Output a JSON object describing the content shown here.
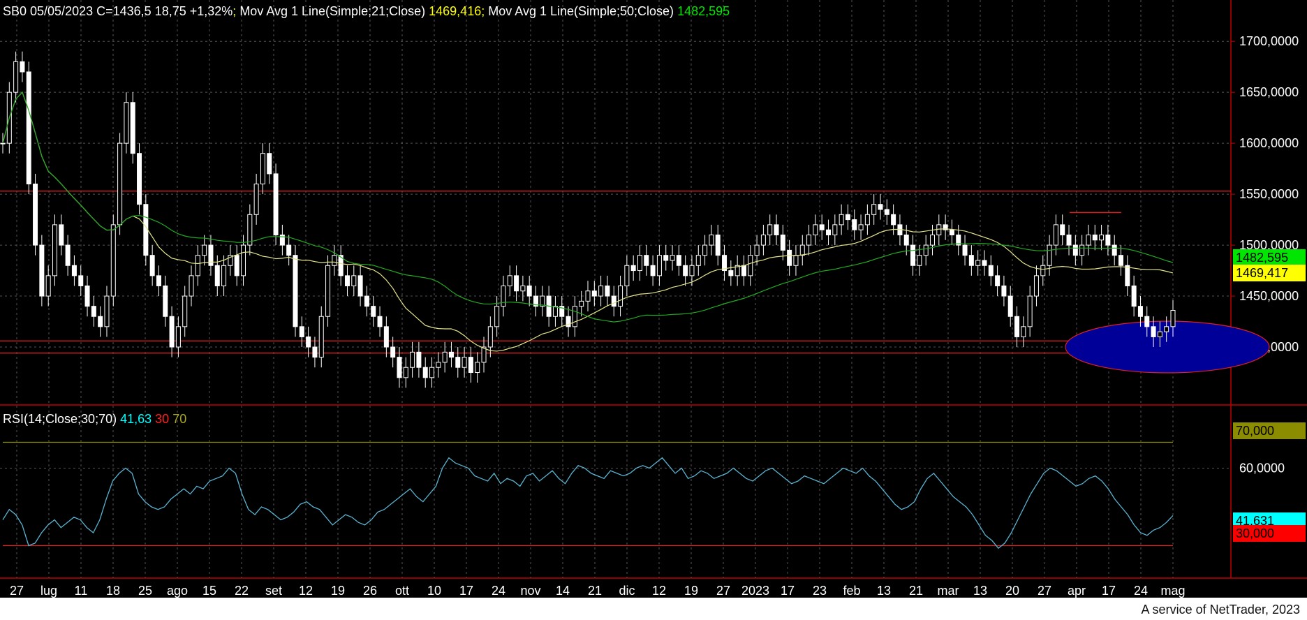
{
  "header": {
    "symbol_line": "SB0 05/05/2023 C=1436,5 18,75 +1,32%",
    "sep1": ";",
    "ma21_label": "Mov Avg 1 Line(Simple;21;Close)",
    "ma21_value": "1469,416",
    "sep2": ";",
    "ma50_label": "Mov Avg 1 Line(Simple;50;Close)",
    "ma50_value": "1482,595"
  },
  "rsi_header": {
    "label": "RSI(14;Close;30;70)",
    "value": "41,63",
    "low": "30",
    "high": "70"
  },
  "tags": {
    "ma50": "1482,595",
    "ma21": "1469,417",
    "rsi70": "70,000",
    "rsi_current": "41,631",
    "rsi30": "30,000"
  },
  "credit": "A service of NetTrader, 2023",
  "colors": {
    "background": "#000000",
    "candle": "#ffffff",
    "ma21": "#e6e68c",
    "ma50": "#22aa22",
    "rsi": "#5ab4d2",
    "level": "#e02020",
    "ellipse_fill": "#000099"
  },
  "chart_data": [
    {
      "type": "candlestick",
      "symbol": "SB0",
      "ylim": [
        1350,
        1720
      ],
      "y_ticks": [
        "1700,0000",
        "1650,0000",
        "1600,0000",
        "1550,0000",
        "1500,0000",
        "1450,0000",
        "1400,0000"
      ],
      "x_tick_labels": [
        "27",
        "lug",
        "11",
        "18",
        "25",
        "ago",
        "15",
        "22",
        "set",
        "12",
        "19",
        "26",
        "ott",
        "10",
        "17",
        "24",
        "nov",
        "14",
        "21",
        "dic",
        "12",
        "19",
        "27",
        "2023",
        "17",
        "23",
        "feb",
        "13",
        "21",
        "mar",
        "13",
        "20",
        "27",
        "apr",
        "17",
        "24",
        "mag"
      ],
      "horizontal_levels": [
        1553,
        1406,
        1394
      ],
      "resistance_segment": {
        "from": "apr",
        "to": "17",
        "value": 1532
      },
      "highlight_ellipse": {
        "center_date": "mag",
        "center_value": 1400
      },
      "close_series": [
        1600,
        1650,
        1680,
        1670,
        1560,
        1500,
        1450,
        1470,
        1520,
        1500,
        1480,
        1470,
        1460,
        1440,
        1430,
        1420,
        1450,
        1520,
        1600,
        1640,
        1590,
        1540,
        1490,
        1470,
        1460,
        1430,
        1400,
        1420,
        1450,
        1470,
        1490,
        1500,
        1480,
        1460,
        1480,
        1490,
        1470,
        1500,
        1530,
        1560,
        1590,
        1570,
        1510,
        1500,
        1490,
        1420,
        1410,
        1400,
        1390,
        1430,
        1480,
        1490,
        1470,
        1460,
        1470,
        1450,
        1440,
        1430,
        1420,
        1400,
        1390,
        1370,
        1380,
        1395,
        1380,
        1370,
        1380,
        1385,
        1395,
        1390,
        1380,
        1390,
        1375,
        1385,
        1400,
        1420,
        1440,
        1460,
        1470,
        1455,
        1460,
        1450,
        1440,
        1450,
        1430,
        1440,
        1430,
        1420,
        1440,
        1445,
        1455,
        1450,
        1460,
        1450,
        1440,
        1460,
        1480,
        1475,
        1490,
        1480,
        1470,
        1490,
        1485,
        1490,
        1480,
        1470,
        1480,
        1490,
        1500,
        1510,
        1490,
        1475,
        1470,
        1480,
        1470,
        1490,
        1500,
        1510,
        1520,
        1510,
        1495,
        1480,
        1490,
        1500,
        1510,
        1520,
        1515,
        1510,
        1520,
        1530,
        1525,
        1515,
        1520,
        1530,
        1540,
        1535,
        1530,
        1520,
        1510,
        1500,
        1480,
        1490,
        1500,
        1510,
        1520,
        1515,
        1510,
        1500,
        1490,
        1480,
        1485,
        1480,
        1470,
        1460,
        1450,
        1430,
        1410,
        1420,
        1450,
        1470,
        1480,
        1500,
        1520,
        1510,
        1500,
        1490,
        1500,
        1510,
        1505,
        1510,
        1500,
        1490,
        1480,
        1460,
        1440,
        1430,
        1420,
        1410,
        1415,
        1420,
        1436
      ],
      "ma21_last": 1469.416,
      "ma50_last": 1482.595
    },
    {
      "type": "line",
      "series_name": "RSI(14;Close;30;70)",
      "ylim": [
        25,
        75
      ],
      "y_ticks": [
        "70,000",
        "60,0000",
        "30,000"
      ],
      "levels": [
        70,
        30
      ],
      "values": [
        40,
        44,
        42,
        38,
        30,
        31,
        35,
        38,
        40,
        37,
        39,
        41,
        40,
        37,
        35,
        40,
        48,
        55,
        58,
        60,
        58,
        50,
        47,
        45,
        44,
        45,
        48,
        50,
        52,
        50,
        53,
        52,
        55,
        56,
        57,
        60,
        58,
        50,
        44,
        42,
        45,
        44,
        42,
        40,
        41,
        43,
        46,
        47,
        45,
        44,
        41,
        38,
        40,
        42,
        41,
        39,
        38,
        40,
        43,
        44,
        46,
        48,
        50,
        52,
        49,
        47,
        50,
        53,
        60,
        64,
        62,
        61,
        60,
        57,
        56,
        55,
        58,
        54,
        56,
        55,
        53,
        57,
        58,
        55,
        57,
        59,
        56,
        54,
        58,
        61,
        60,
        58,
        57,
        56,
        59,
        58,
        57,
        58,
        60,
        61,
        60,
        62,
        64,
        61,
        58,
        60,
        56,
        57,
        59,
        58,
        56,
        57,
        58,
        60,
        58,
        56,
        55,
        57,
        59,
        60,
        58,
        56,
        54,
        55,
        57,
        56,
        55,
        54,
        56,
        58,
        60,
        59,
        58,
        60,
        57,
        55,
        52,
        49,
        46,
        44,
        45,
        47,
        52,
        56,
        58,
        55,
        52,
        49,
        47,
        45,
        42,
        38,
        34,
        32,
        29,
        31,
        35,
        40,
        45,
        50,
        54,
        58,
        60,
        59,
        57,
        55,
        53,
        54,
        56,
        57,
        55,
        52,
        48,
        45,
        42,
        38,
        35,
        34,
        36,
        37,
        39,
        41.63
      ],
      "current": 41.631
    }
  ]
}
